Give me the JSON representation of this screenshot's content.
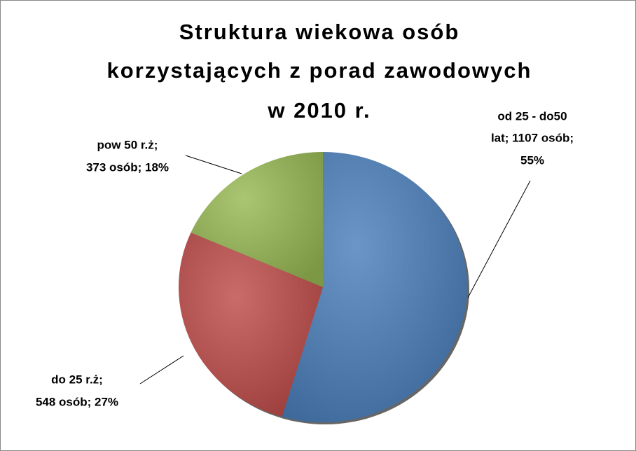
{
  "chart_data": {
    "type": "pie",
    "title": [
      "Struktura wiekowa osób",
      "korzystających z porad zawodowych",
      "w 2010 r."
    ],
    "categories": [
      "od 25 - do50 lat",
      "do 25 r.ż",
      "pow 50 r.ż"
    ],
    "values": [
      1107,
      548,
      373
    ],
    "value_labels": [
      [
        "od 25 - do50",
        "lat; 1107 osób;",
        "55%"
      ],
      [
        "do 25 r.ż;",
        "548 osób; 27%"
      ],
      [
        "pow 50 r.ż;",
        "373 osób; 18%"
      ]
    ],
    "colors": [
      "#4a7ebb",
      "#be4b48",
      "#98b954"
    ]
  }
}
